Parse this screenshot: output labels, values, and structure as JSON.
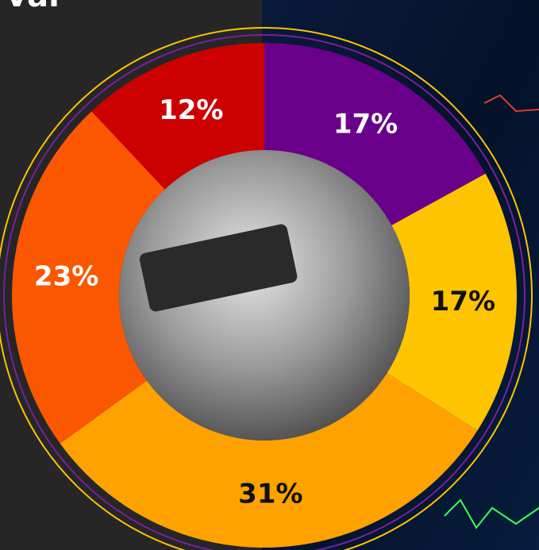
{
  "chart_data": {
    "type": "pie",
    "title": "val",
    "categories": [
      null,
      null,
      null,
      null,
      null
    ],
    "values": [
      17,
      17,
      31,
      23,
      12
    ],
    "value_labels": [
      "17%",
      "17%",
      "31%",
      "23%",
      "12%"
    ],
    "colors": [
      "#6a008a",
      "#ffc400",
      "#ffa200",
      "#fb5700",
      "#cc0000"
    ],
    "donut": true
  }
}
